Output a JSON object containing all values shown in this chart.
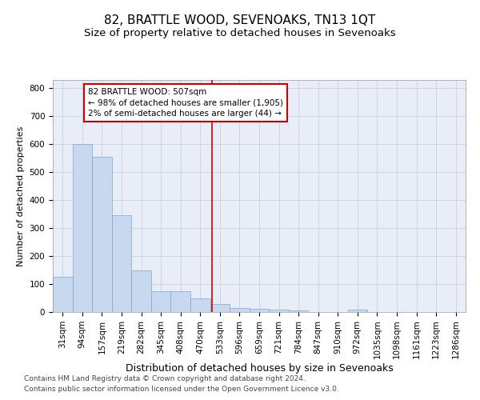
{
  "title": "82, BRATTLE WOOD, SEVENOAKS, TN13 1QT",
  "subtitle": "Size of property relative to detached houses in Sevenoaks",
  "xlabel": "Distribution of detached houses by size in Sevenoaks",
  "ylabel": "Number of detached properties",
  "footer1": "Contains HM Land Registry data © Crown copyright and database right 2024.",
  "footer2": "Contains public sector information licensed under the Open Government Licence v3.0.",
  "bin_labels": [
    "31sqm",
    "94sqm",
    "157sqm",
    "219sqm",
    "282sqm",
    "345sqm",
    "408sqm",
    "470sqm",
    "533sqm",
    "596sqm",
    "659sqm",
    "721sqm",
    "784sqm",
    "847sqm",
    "910sqm",
    "972sqm",
    "1035sqm",
    "1098sqm",
    "1161sqm",
    "1223sqm",
    "1286sqm"
  ],
  "bar_heights": [
    125,
    600,
    555,
    345,
    148,
    75,
    75,
    50,
    30,
    15,
    12,
    10,
    5,
    0,
    0,
    8,
    0,
    0,
    0,
    0,
    0
  ],
  "bar_color": "#c8d8ee",
  "bar_edge_color": "#7aa8d0",
  "grid_color": "#c8d0e0",
  "background_color": "#e8edf8",
  "annotation_text": "82 BRATTLE WOOD: 507sqm\n← 98% of detached houses are smaller (1,905)\n2% of semi-detached houses are larger (44) →",
  "annotation_box_color": "#ffffff",
  "annotation_border_color": "#cc0000",
  "vline_color": "#cc0000",
  "ylim": [
    0,
    830
  ],
  "title_fontsize": 11,
  "subtitle_fontsize": 9.5,
  "xlabel_fontsize": 9,
  "ylabel_fontsize": 8,
  "tick_fontsize": 7.5,
  "annotation_fontsize": 7.5,
  "footer_fontsize": 6.5,
  "red_line_bin": 7.587
}
